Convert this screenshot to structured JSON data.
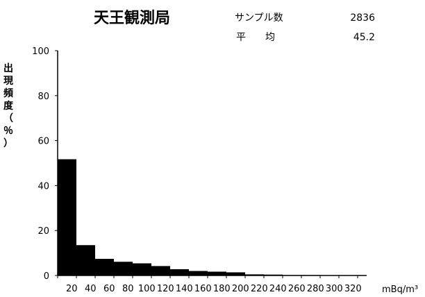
{
  "header": {
    "title": "天王観測局",
    "sample_label": "サンプル数",
    "sample_value": "2836",
    "mean_label": "平　　均",
    "mean_value": "45.2"
  },
  "chart_data": {
    "type": "bar",
    "title": "天王観測局",
    "xlabel": "mBq/m³",
    "ylabel": "出現頻度（％）",
    "ylim": [
      0,
      100
    ],
    "yticks": [
      0,
      20,
      40,
      60,
      80,
      100
    ],
    "categories": [
      "20",
      "40",
      "60",
      "80",
      "100",
      "120",
      "140",
      "160",
      "180",
      "200",
      "220",
      "240",
      "260",
      "280",
      "300",
      "320"
    ],
    "values": [
      51.7,
      13.5,
      7.4,
      6.1,
      5.4,
      4.2,
      2.8,
      2.0,
      1.7,
      1.4,
      0.5,
      0.4,
      0.2,
      0.2,
      0.1,
      0.1
    ],
    "grid": false,
    "bar_color": "#000000"
  }
}
